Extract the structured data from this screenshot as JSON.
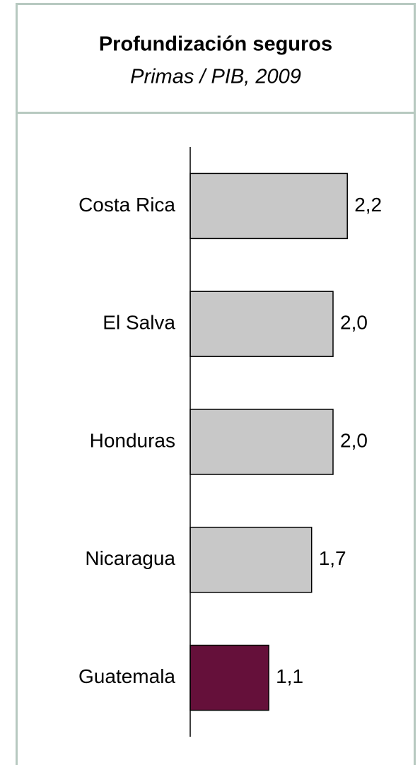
{
  "chart_data": {
    "type": "barh",
    "title": "Profundización seguros",
    "subtitle": "Primas / PIB, 2009",
    "categories": [
      "Costa Rica",
      "El Salva",
      "Honduras",
      "Nicaragua",
      "Guatemala"
    ],
    "values": [
      2.2,
      2.0,
      2.0,
      1.7,
      1.1
    ],
    "value_labels": [
      "2,2",
      "2,0",
      "2,0",
      "1,7",
      "1,1"
    ],
    "colors": [
      "#c8c8c8",
      "#c8c8c8",
      "#c8c8c8",
      "#c8c8c8",
      "#65103a"
    ],
    "xlim": [
      0,
      3
    ]
  }
}
